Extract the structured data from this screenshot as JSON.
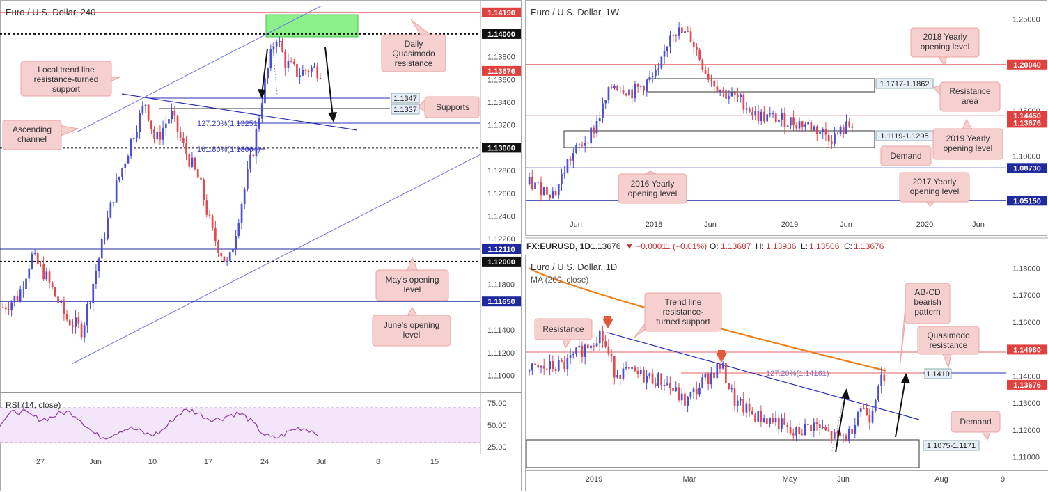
{
  "panels": {
    "h4": {
      "title": "Euro / U.S. Dollar, 240"
    },
    "weekly": {
      "title": "Euro / U.S. Dollar, 1W"
    },
    "daily": {
      "title": "Euro / U.S. Dollar, 1D",
      "ma_label": "MA (200, close)",
      "ticker": {
        "symbol": "FX:EURUSD, 1D",
        "last": "1.13676",
        "change": "▼ −0.00011 (−0.01%)",
        "o_label": "O:",
        "o": "1.13687",
        "h_label": "H:",
        "h": "1.13936",
        "l_label": "L:",
        "l": "1.13506",
        "c_label": "C:",
        "c": "1.13676"
      }
    }
  },
  "colors": {
    "bull": "#4a4fd8",
    "bear": "#e0494f",
    "resistance_line": "#e06060",
    "support_line": "#1f2a9e",
    "ma": "#f07f1a",
    "callout_bg": "#f6cfcf",
    "callout_border": "#e8a5a5",
    "zone_green": "#7ef07e",
    "rsi_line": "#8d3b9c",
    "rsi_bg": "#f3e6fb"
  },
  "chart_data": [
    {
      "id": "h4",
      "type": "candlestick",
      "title": "Euro / U.S. Dollar, 240",
      "x_ticks": [
        "27",
        "Jun",
        "10",
        "17",
        "24",
        "Jul",
        "8",
        "15"
      ],
      "y_ticks": [
        "1.13800",
        "1.13600",
        "1.13400",
        "1.13200",
        "1.12800",
        "1.12600",
        "1.12400",
        "1.12200",
        "1.11800",
        "1.11400",
        "1.11200",
        "1.11000"
      ],
      "ylim": [
        1.1085,
        1.1425
      ],
      "price_tags": [
        {
          "label": "1.14190",
          "value": 1.1419,
          "kind": "res"
        },
        {
          "label": "1.14000",
          "value": 1.14,
          "kind": "black"
        },
        {
          "label": "1.13676",
          "value": 1.13676,
          "kind": "cur"
        },
        {
          "label": "1.13000",
          "value": 1.13,
          "kind": "black"
        },
        {
          "label": "1.12110",
          "value": 1.1211,
          "kind": "sup"
        },
        {
          "label": "1.12000",
          "value": 1.12,
          "kind": "black"
        },
        {
          "label": "1.11650",
          "value": 1.1165,
          "kind": "sup"
        }
      ],
      "levels": [
        {
          "value": 1.1419,
          "style": "red"
        },
        {
          "value": 1.14,
          "style": "dashed"
        },
        {
          "value": 1.13,
          "style": "dashed"
        },
        {
          "value": 1.1211,
          "style": "blue"
        },
        {
          "value": 1.12,
          "style": "dashed"
        },
        {
          "value": 1.1165,
          "style": "blue"
        }
      ],
      "support_boxes": [
        "1.1347",
        "1.1337"
      ],
      "fib_labels": [
        "127.20%(1.13251)",
        "161.80%(1.13004)"
      ],
      "annotations": [
        "Daily Quasimodo resistance",
        "Local trend line resistance-turned support",
        "Supports",
        "Ascending channel",
        "May's opening level",
        "June's opening level"
      ],
      "rsi": {
        "label": "RSI (14, close)",
        "ticks": [
          "75.00",
          "50.00",
          "25.00"
        ],
        "bands": [
          70,
          30
        ]
      }
    },
    {
      "id": "weekly",
      "type": "candlestick",
      "title": "Euro / U.S. Dollar, 1W",
      "x_ticks": [
        "Jun",
        "2018",
        "Jun",
        "2019",
        "Jun",
        "2020",
        "Jun"
      ],
      "y_ticks": [
        "1.25000",
        "1.15000",
        "1.10000"
      ],
      "ylim": [
        1.035,
        1.265
      ],
      "price_tags": [
        {
          "label": "1.20040",
          "value": 1.2004,
          "kind": "res"
        },
        {
          "label": "1.14450",
          "value": 1.1445,
          "kind": "res"
        },
        {
          "label": "1.13676",
          "value": 1.13676,
          "kind": "cur"
        },
        {
          "label": "1.08730",
          "value": 1.0873,
          "kind": "sup"
        },
        {
          "label": "1.05150",
          "value": 1.0515,
          "kind": "sup"
        }
      ],
      "zones": [
        "1.1717-1.1862",
        "1.1119-1.1295"
      ],
      "annotations": [
        "2018 Yearly opening level",
        "Resistance area",
        "2019 Yearly opening level",
        "Demand",
        "2016 Yearly opening level",
        "2017 Yearly opening level"
      ]
    },
    {
      "id": "daily",
      "type": "candlestick",
      "title": "Euro / U.S. Dollar, 1D",
      "x_ticks": [
        "2019",
        "Mar",
        "May",
        "Jun",
        "Aug",
        "9"
      ],
      "y_ticks": [
        "1.18000",
        "1.17000",
        "1.16000",
        "1.14000",
        "1.13000",
        "1.12000",
        "1.11000"
      ],
      "ylim": [
        1.1055,
        1.1845
      ],
      "price_tags": [
        {
          "label": "1.14980",
          "value": 1.1498,
          "kind": "res"
        },
        {
          "label": "1.13676",
          "value": 1.13676,
          "kind": "cur"
        }
      ],
      "zones": [
        "1.1075-1.1171"
      ],
      "level_box": "1.1419",
      "fib_label": "127.20%(1.14161)",
      "annotations": [
        "Resistance",
        "Trend line resistance-turned support",
        "AB-CD bearish pattern",
        "Quasimodo resistance",
        "Demand"
      ]
    }
  ]
}
